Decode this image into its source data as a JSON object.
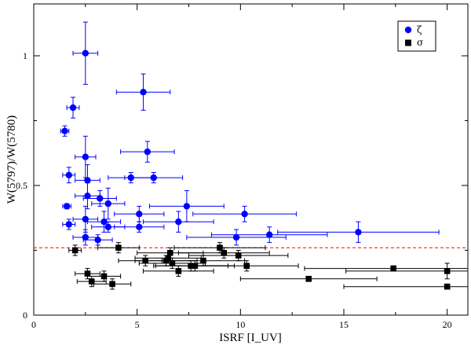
{
  "chart_data": {
    "type": "scatter",
    "title": "",
    "xlabel": "ISRF [I_UV]",
    "ylabel": "W(5797)/W(5780)",
    "xlim": [
      0,
      21
    ],
    "ylim": [
      0,
      1.2
    ],
    "x_ticks": [
      0,
      5,
      10,
      15,
      20
    ],
    "x_tick_labels": [
      "0",
      "5",
      "10",
      "15",
      "20"
    ],
    "y_ticks": [
      0,
      0.5,
      1
    ],
    "y_tick_labels": [
      "0",
      "0.5",
      "1"
    ],
    "threshold_line": {
      "y": 0.26,
      "color": "#ff0000",
      "style": "dashed"
    },
    "legend": {
      "position": "top-right",
      "entries": [
        "ζ",
        "σ"
      ]
    },
    "series": [
      {
        "name": "ζ",
        "marker": "circle",
        "color": "#0000ff",
        "points": [
          {
            "x": 2.5,
            "y": 1.01,
            "xerr": 0.6,
            "yerr": 0.12
          },
          {
            "x": 5.3,
            "y": 0.86,
            "xerr": 1.3,
            "yerr": 0.07
          },
          {
            "x": 1.9,
            "y": 0.8,
            "xerr": 0.3,
            "yerr": 0.04
          },
          {
            "x": 1.5,
            "y": 0.71,
            "xerr": 0.2,
            "yerr": 0.02
          },
          {
            "x": 5.5,
            "y": 0.63,
            "xerr": 1.3,
            "yerr": 0.04
          },
          {
            "x": 2.5,
            "y": 0.61,
            "xerr": 0.5,
            "yerr": 0.08
          },
          {
            "x": 1.7,
            "y": 0.54,
            "xerr": 0.3,
            "yerr": 0.03
          },
          {
            "x": 2.6,
            "y": 0.52,
            "xerr": 0.6,
            "yerr": 0.06
          },
          {
            "x": 4.7,
            "y": 0.53,
            "xerr": 1.1,
            "yerr": 0.02
          },
          {
            "x": 5.8,
            "y": 0.53,
            "xerr": 1.4,
            "yerr": 0.02
          },
          {
            "x": 2.6,
            "y": 0.46,
            "xerr": 0.6,
            "yerr": 0.05
          },
          {
            "x": 3.2,
            "y": 0.45,
            "xerr": 0.8,
            "yerr": 0.03
          },
          {
            "x": 3.6,
            "y": 0.43,
            "xerr": 0.8,
            "yerr": 0.06
          },
          {
            "x": 1.6,
            "y": 0.42,
            "xerr": 0.2,
            "yerr": 0.01
          },
          {
            "x": 7.4,
            "y": 0.42,
            "xerr": 1.8,
            "yerr": 0.06
          },
          {
            "x": 10.2,
            "y": 0.39,
            "xerr": 2.5,
            "yerr": 0.03
          },
          {
            "x": 5.1,
            "y": 0.39,
            "xerr": 1.2,
            "yerr": 0.03
          },
          {
            "x": 2.5,
            "y": 0.37,
            "xerr": 0.6,
            "yerr": 0.05
          },
          {
            "x": 3.4,
            "y": 0.36,
            "xerr": 0.8,
            "yerr": 0.04
          },
          {
            "x": 7.0,
            "y": 0.36,
            "xerr": 1.7,
            "yerr": 0.04
          },
          {
            "x": 1.7,
            "y": 0.35,
            "xerr": 0.3,
            "yerr": 0.02
          },
          {
            "x": 3.6,
            "y": 0.34,
            "xerr": 0.8,
            "yerr": 0.02
          },
          {
            "x": 5.1,
            "y": 0.34,
            "xerr": 1.2,
            "yerr": 0.02
          },
          {
            "x": 15.7,
            "y": 0.32,
            "xerr": 3.9,
            "yerr": 0.04
          },
          {
            "x": 11.4,
            "y": 0.31,
            "xerr": 2.8,
            "yerr": 0.03
          },
          {
            "x": 2.5,
            "y": 0.3,
            "xerr": 0.6,
            "yerr": 0.03
          },
          {
            "x": 9.8,
            "y": 0.3,
            "xerr": 2.4,
            "yerr": 0.03
          },
          {
            "x": 3.1,
            "y": 0.29,
            "xerr": 0.7,
            "yerr": 0.02
          }
        ]
      },
      {
        "name": "σ",
        "marker": "square",
        "color": "#000000",
        "points": [
          {
            "x": 2.0,
            "y": 0.25,
            "xerr": 0.3,
            "yerr": 0.02
          },
          {
            "x": 4.1,
            "y": 0.26,
            "xerr": 1.0,
            "yerr": 0.02
          },
          {
            "x": 9.0,
            "y": 0.26,
            "xerr": 2.2,
            "yerr": 0.02
          },
          {
            "x": 9.2,
            "y": 0.24,
            "xerr": 2.2,
            "yerr": 0.02
          },
          {
            "x": 6.6,
            "y": 0.24,
            "xerr": 1.6,
            "yerr": 0.02
          },
          {
            "x": 9.9,
            "y": 0.23,
            "xerr": 2.4,
            "yerr": 0.02
          },
          {
            "x": 6.5,
            "y": 0.22,
            "xerr": 1.6,
            "yerr": 0.02
          },
          {
            "x": 5.4,
            "y": 0.21,
            "xerr": 1.3,
            "yerr": 0.02
          },
          {
            "x": 6.4,
            "y": 0.21,
            "xerr": 1.5,
            "yerr": 0.02
          },
          {
            "x": 8.2,
            "y": 0.21,
            "xerr": 2.0,
            "yerr": 0.02
          },
          {
            "x": 6.7,
            "y": 0.2,
            "xerr": 1.6,
            "yerr": 0.02
          },
          {
            "x": 7.6,
            "y": 0.19,
            "xerr": 1.8,
            "yerr": 0.02
          },
          {
            "x": 7.8,
            "y": 0.19,
            "xerr": 1.9,
            "yerr": 0.02
          },
          {
            "x": 10.3,
            "y": 0.19,
            "xerr": 2.5,
            "yerr": 0.02
          },
          {
            "x": 17.4,
            "y": 0.18,
            "xerr": 4.3,
            "yerr": 0.01
          },
          {
            "x": 7.0,
            "y": 0.17,
            "xerr": 1.7,
            "yerr": 0.02
          },
          {
            "x": 20.0,
            "y": 0.17,
            "xerr": 4.9,
            "yerr": 0.03
          },
          {
            "x": 2.6,
            "y": 0.16,
            "xerr": 0.6,
            "yerr": 0.02
          },
          {
            "x": 3.4,
            "y": 0.15,
            "xerr": 0.8,
            "yerr": 0.02
          },
          {
            "x": 13.3,
            "y": 0.14,
            "xerr": 3.3,
            "yerr": 0.01
          },
          {
            "x": 2.8,
            "y": 0.13,
            "xerr": 0.7,
            "yerr": 0.02
          },
          {
            "x": 3.8,
            "y": 0.12,
            "xerr": 0.9,
            "yerr": 0.02
          },
          {
            "x": 20.0,
            "y": 0.11,
            "xerr": 5.0,
            "yerr": 0.01
          }
        ]
      }
    ]
  }
}
